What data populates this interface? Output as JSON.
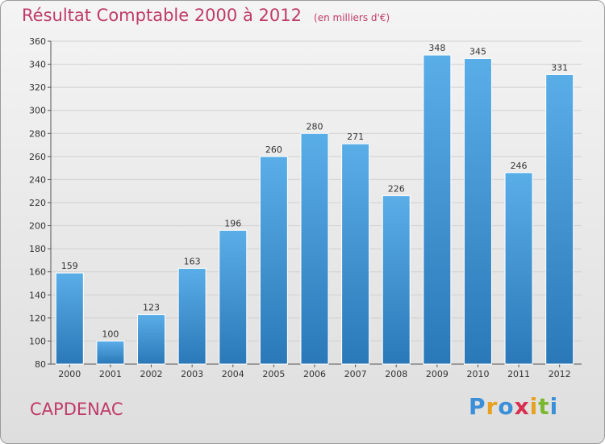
{
  "chart_data": {
    "type": "bar",
    "title": "Résultat Comptable 2000 à 2012",
    "subtitle": "(en milliers d'€)",
    "categories": [
      "2000",
      "2001",
      "2002",
      "2003",
      "2004",
      "2005",
      "2006",
      "2007",
      "2008",
      "2009",
      "2010",
      "2011",
      "2012"
    ],
    "values": [
      159,
      100,
      123,
      163,
      196,
      260,
      280,
      271,
      226,
      348,
      345,
      246,
      331
    ],
    "ylim": [
      80,
      360
    ],
    "yticks": [
      80,
      100,
      120,
      140,
      160,
      180,
      200,
      220,
      240,
      260,
      280,
      300,
      320,
      340,
      360
    ],
    "grid": true,
    "bar_color_top": "#5aaee8",
    "bar_color_bottom": "#2a78b8"
  },
  "footer": {
    "town": "CAPDENAC",
    "logo": "Proxiti",
    "logo_colors": [
      "#3a8fd8",
      "#e8a020",
      "#3a8fd8",
      "#d83050",
      "#e8a020",
      "#7ab830",
      "#3a8fd8"
    ]
  },
  "colors": {
    "title": "#c03a6a",
    "grid": "#d0d0d0",
    "axis": "#555555"
  }
}
